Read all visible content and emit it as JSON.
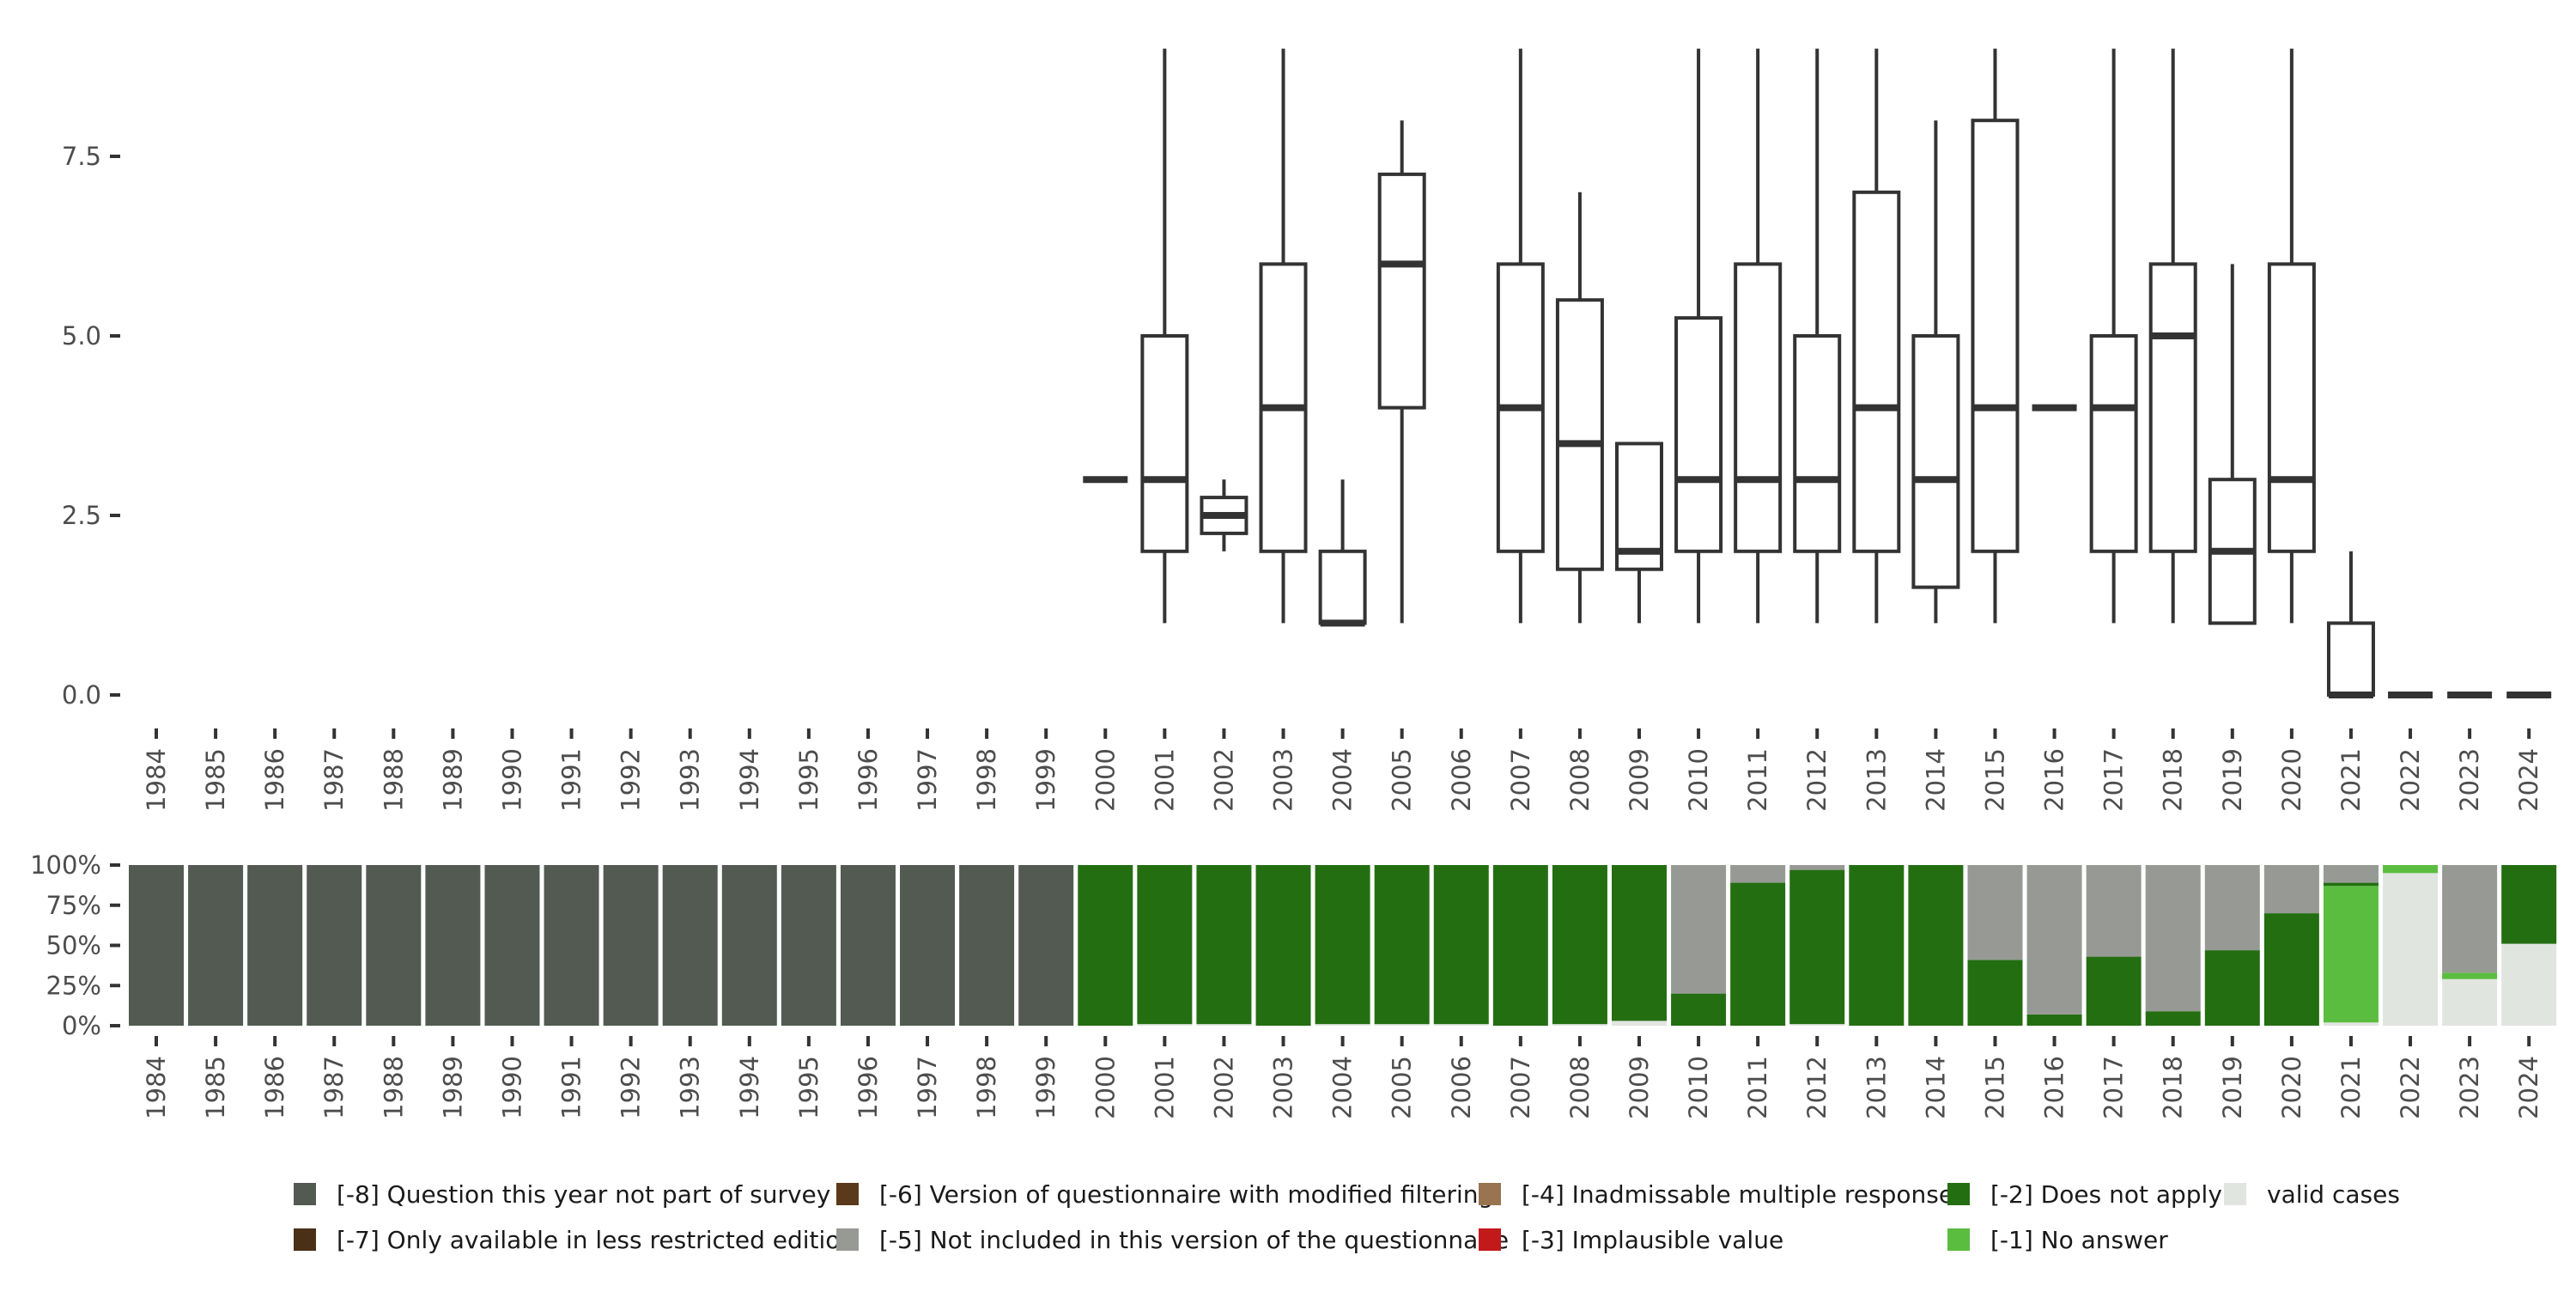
{
  "chart_data": [
    {
      "type": "boxplot",
      "title": "",
      "xlabel": "",
      "ylabel": "",
      "ylim": [
        0,
        9
      ],
      "y_ticks": [
        0,
        2.5,
        5,
        7.5
      ],
      "y_tick_labels": [
        "0.0",
        "2.5",
        "5.0",
        "7.5"
      ],
      "categories": [
        "1984",
        "1985",
        "1986",
        "1987",
        "1988",
        "1989",
        "1990",
        "1991",
        "1992",
        "1993",
        "1994",
        "1995",
        "1996",
        "1997",
        "1998",
        "1999",
        "2000",
        "2001",
        "2002",
        "2003",
        "2004",
        "2005",
        "2006",
        "2007",
        "2008",
        "2009",
        "2010",
        "2011",
        "2012",
        "2013",
        "2014",
        "2015",
        "2016",
        "2017",
        "2018",
        "2019",
        "2020",
        "2021",
        "2022",
        "2023",
        "2024"
      ],
      "boxes": [
        {
          "year": "2000",
          "lower": 3,
          "q1": 3,
          "median": 3,
          "q3": 3,
          "upper": 3
        },
        {
          "year": "2001",
          "lower": 1,
          "q1": 2,
          "median": 3,
          "q3": 5,
          "upper": 9
        },
        {
          "year": "2002",
          "lower": 2,
          "q1": 2.25,
          "median": 2.5,
          "q3": 2.75,
          "upper": 3
        },
        {
          "year": "2003",
          "lower": 1,
          "q1": 2,
          "median": 4,
          "q3": 6,
          "upper": 9
        },
        {
          "year": "2004",
          "lower": 1,
          "q1": 1,
          "median": 1,
          "q3": 2,
          "upper": 3
        },
        {
          "year": "2005",
          "lower": 1,
          "q1": 4,
          "median": 6,
          "q3": 7.25,
          "upper": 8
        },
        {
          "year": "2007",
          "lower": 1,
          "q1": 2,
          "median": 4,
          "q3": 6,
          "upper": 9
        },
        {
          "year": "2008",
          "lower": 1,
          "q1": 1.75,
          "median": 3.5,
          "q3": 5.5,
          "upper": 7
        },
        {
          "year": "2009",
          "lower": 1,
          "q1": 1.75,
          "median": 2,
          "q3": 3.5,
          "upper": 3.5
        },
        {
          "year": "2010",
          "lower": 1,
          "q1": 2,
          "median": 3,
          "q3": 5.25,
          "upper": 9
        },
        {
          "year": "2011",
          "lower": 1,
          "q1": 2,
          "median": 3,
          "q3": 6,
          "upper": 9
        },
        {
          "year": "2012",
          "lower": 1,
          "q1": 2,
          "median": 3,
          "q3": 5,
          "upper": 9
        },
        {
          "year": "2013",
          "lower": 1,
          "q1": 2,
          "median": 4,
          "q3": 7,
          "upper": 9
        },
        {
          "year": "2014",
          "lower": 1,
          "q1": 1.5,
          "median": 3,
          "q3": 5,
          "upper": 8
        },
        {
          "year": "2015",
          "lower": 1,
          "q1": 2,
          "median": 4,
          "q3": 8,
          "upper": 9
        },
        {
          "year": "2016",
          "lower": 4,
          "q1": 4,
          "median": 4,
          "q3": 4,
          "upper": 4
        },
        {
          "year": "2017",
          "lower": 1,
          "q1": 2,
          "median": 4,
          "q3": 5,
          "upper": 9
        },
        {
          "year": "2018",
          "lower": 1,
          "q1": 2,
          "median": 5,
          "q3": 6,
          "upper": 9
        },
        {
          "year": "2019",
          "lower": 1,
          "q1": 1,
          "median": 2,
          "q3": 3,
          "upper": 6
        },
        {
          "year": "2020",
          "lower": 1,
          "q1": 2,
          "median": 3,
          "q3": 6,
          "upper": 9
        },
        {
          "year": "2021",
          "lower": 0,
          "q1": 0,
          "median": 0,
          "q3": 1,
          "upper": 2
        },
        {
          "year": "2022",
          "lower": 0,
          "q1": 0,
          "median": 0,
          "q3": 0,
          "upper": 0
        },
        {
          "year": "2023",
          "lower": 0,
          "q1": 0,
          "median": 0,
          "q3": 0,
          "upper": 0
        },
        {
          "year": "2024",
          "lower": 0,
          "q1": 0,
          "median": 0,
          "q3": 0,
          "upper": 0
        }
      ]
    },
    {
      "type": "stacked_bar",
      "title": "",
      "xlabel": "",
      "ylabel": "",
      "ylim": [
        0,
        100
      ],
      "y_ticks": [
        0,
        25,
        50,
        75,
        100
      ],
      "y_tick_labels": [
        "0%",
        "25%",
        "50%",
        "75%",
        "100%"
      ],
      "categories": [
        "1984",
        "1985",
        "1986",
        "1987",
        "1988",
        "1989",
        "1990",
        "1991",
        "1992",
        "1993",
        "1994",
        "1995",
        "1996",
        "1997",
        "1998",
        "1999",
        "2000",
        "2001",
        "2002",
        "2003",
        "2004",
        "2005",
        "2006",
        "2007",
        "2008",
        "2009",
        "2010",
        "2011",
        "2012",
        "2013",
        "2014",
        "2015",
        "2016",
        "2017",
        "2018",
        "2019",
        "2020",
        "2021",
        "2022",
        "2023",
        "2024"
      ],
      "stack_order": [
        "valid",
        "m1",
        "m2",
        "m5",
        "m8"
      ],
      "series": [
        {
          "key": "valid",
          "name": "valid cases",
          "color": "#e1e5e0",
          "values": [
            0,
            0,
            0,
            0,
            0,
            0,
            0,
            0,
            0,
            0,
            0,
            0,
            0,
            0,
            0,
            0,
            0,
            1,
            1,
            0,
            1,
            1,
            1,
            0,
            1,
            3,
            0,
            0,
            1,
            0,
            0,
            0,
            0,
            0,
            0,
            0,
            0,
            2,
            95,
            29,
            51
          ]
        },
        {
          "key": "m1",
          "name": "[-1] No answer",
          "color": "#5bbd40",
          "values": [
            0,
            0,
            0,
            0,
            0,
            0,
            0,
            0,
            0,
            0,
            0,
            0,
            0,
            0,
            0,
            0,
            0,
            0,
            0,
            0,
            0,
            0,
            0,
            0,
            0,
            0,
            0,
            0,
            0,
            0,
            0,
            0,
            0,
            0,
            0,
            0,
            0,
            85,
            5,
            4,
            0
          ]
        },
        {
          "key": "m2",
          "name": "[-2] Does not apply",
          "color": "#246e12",
          "values": [
            0,
            0,
            0,
            0,
            0,
            0,
            0,
            0,
            0,
            0,
            0,
            0,
            0,
            0,
            0,
            0,
            100,
            99,
            99,
            100,
            99,
            99,
            99,
            100,
            99,
            97,
            20,
            89,
            96,
            100,
            100,
            41,
            7,
            43,
            9,
            47,
            70,
            2,
            0,
            0,
            49
          ]
        },
        {
          "key": "m5",
          "name": "[-5] Not included in this version of the questionnaire",
          "color": "#979a94",
          "values": [
            0,
            0,
            0,
            0,
            0,
            0,
            0,
            0,
            0,
            0,
            0,
            0,
            0,
            0,
            0,
            0,
            0,
            0,
            0,
            0,
            0,
            0,
            0,
            0,
            0,
            0,
            80,
            11,
            3,
            0,
            0,
            59,
            93,
            57,
            91,
            53,
            30,
            11,
            0,
            67,
            0
          ]
        },
        {
          "key": "m8",
          "name": "[-8] Question this year not part of survey",
          "color": "#525a52",
          "values": [
            100,
            100,
            100,
            100,
            100,
            100,
            100,
            100,
            100,
            100,
            100,
            100,
            100,
            100,
            100,
            100,
            0,
            0,
            0,
            0,
            0,
            0,
            0,
            0,
            0,
            0,
            0,
            0,
            0,
            0,
            0,
            0,
            0,
            0,
            0,
            0,
            0,
            0,
            0,
            0,
            0
          ]
        }
      ]
    }
  ],
  "legend": [
    {
      "name": "[-8] Question this year not part of survey",
      "color": "#525a52"
    },
    {
      "name": "[-7] Only available in less restricted edition",
      "color": "#4a3016"
    },
    {
      "name": "[-6] Version of questionnaire with modified filtering",
      "color": "#5a3a1a"
    },
    {
      "name": "[-5] Not included in this version of the questionnaire",
      "color": "#979a94"
    },
    {
      "name": "[-4] Inadmissable multiple response",
      "color": "#9a7450"
    },
    {
      "name": "[-3] Implausible value",
      "color": "#c2191b"
    },
    {
      "name": "[-2] Does not apply",
      "color": "#246e12"
    },
    {
      "name": "[-1] No answer",
      "color": "#5bbd40"
    },
    {
      "name": "valid cases",
      "color": "#e1e5e0"
    }
  ]
}
